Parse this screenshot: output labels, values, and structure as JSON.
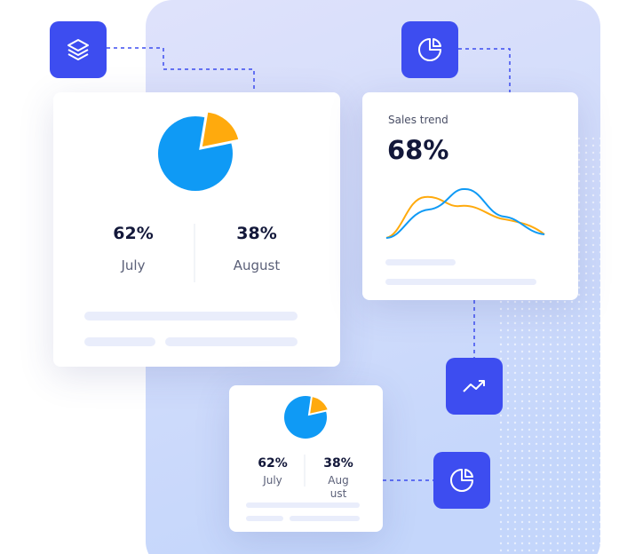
{
  "main_card": {
    "stats": [
      {
        "value": "62%",
        "label": "July"
      },
      {
        "value": "38%",
        "label": "August"
      }
    ]
  },
  "trend_card": {
    "title": "Sales trend",
    "value": "68%"
  },
  "small_card": {
    "stats": [
      {
        "value": "62%",
        "label": "July"
      },
      {
        "value": "38%",
        "label": "August"
      }
    ]
  }
}
